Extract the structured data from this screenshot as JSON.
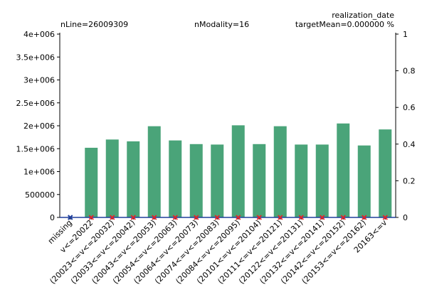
{
  "header": {
    "feature_name": "realization_date",
    "nline": "nLine=26009309",
    "nmodality": "nModality=16",
    "target_mean": "targetMean=0.000000  %"
  },
  "colors": {
    "bar": "#4aa479",
    "target_marker": "#e8222a",
    "axis": "#000000",
    "baseline": "#1f3f9b",
    "missing_marker": "#1f3f9b"
  },
  "chart_data": {
    "type": "bar",
    "categories": [
      "missing",
      "v<=20022",
      "(20023<=v<=20032)",
      "(20033<=v<=20042)",
      "(20043<=v<=20053)",
      "(20054<=v<=20063)",
      "(20064<=v<=20073)",
      "(20074<=v<=20083)",
      "(20084<=v<=20095)",
      "(20101<=v<=20104)",
      "(20111<=v<=20121)",
      "(20122<=v<=20131)",
      "(20132<=v<=20141)",
      "(20142<=v<=20152)",
      "(20153<=v<=20162)",
      "20163<=v"
    ],
    "values": [
      0,
      1520000,
      1700000,
      1660000,
      1990000,
      1680000,
      1600000,
      1590000,
      2010000,
      1600000,
      1990000,
      1590000,
      1590000,
      2050000,
      1570000,
      1920000
    ],
    "target_values": [
      0,
      0,
      0,
      0,
      0,
      0,
      0,
      0,
      0,
      0,
      0,
      0,
      0,
      0,
      0,
      0
    ],
    "ylim": [
      0,
      4000000
    ],
    "y_ticks": [
      0,
      500000,
      1000000,
      1500000,
      2000000,
      2500000,
      3000000,
      3500000,
      4000000
    ],
    "y_tick_labels": [
      "0",
      "500000",
      "1e+006",
      "1.5e+006",
      "2e+006",
      "2.5e+006",
      "3e+006",
      "3.5e+006",
      "4e+006"
    ],
    "y2lim": [
      0,
      1
    ],
    "y2_ticks": [
      0,
      0.2,
      0.4,
      0.6,
      0.8,
      1
    ],
    "y2_tick_labels": [
      "0",
      "0.2",
      "0.4",
      "0.6",
      "0.8",
      "1"
    ],
    "grid": false
  }
}
